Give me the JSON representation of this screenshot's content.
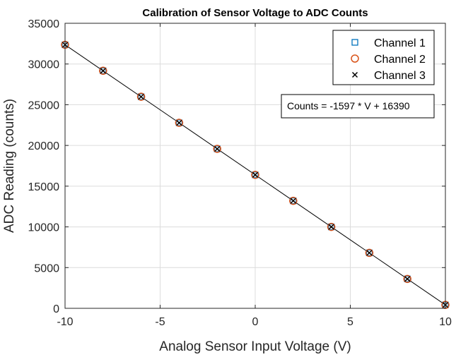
{
  "chart_data": {
    "type": "scatter",
    "title": "Calibration of Sensor Voltage to ADC Counts",
    "xlabel": "Analog Sensor Input Voltage (V)",
    "ylabel": "ADC Reading (counts)",
    "xlim": [
      -10,
      10
    ],
    "ylim": [
      0,
      35000
    ],
    "xticks": [
      -10,
      -5,
      0,
      5,
      10
    ],
    "yticks": [
      0,
      5000,
      10000,
      15000,
      20000,
      25000,
      30000,
      35000
    ],
    "x_tick_labels": [
      "-10",
      "-5",
      "0",
      "5",
      "10"
    ],
    "y_tick_labels": [
      "0",
      "5000",
      "10000",
      "15000",
      "20000",
      "25000",
      "30000",
      "35000"
    ],
    "grid": true,
    "legend_position": "top-right",
    "x": [
      -10,
      -8,
      -6,
      -4,
      -2,
      0,
      2,
      4,
      6,
      8,
      10
    ],
    "series": [
      {
        "name": "Channel 1",
        "marker": "square",
        "color": "#0072BD",
        "values": [
          32360,
          29170,
          25980,
          22780,
          19580,
          16390,
          13200,
          10000,
          6810,
          3610,
          420
        ]
      },
      {
        "name": "Channel 2",
        "marker": "circle",
        "color": "#D95319",
        "values": [
          32360,
          29170,
          25980,
          22780,
          19580,
          16390,
          13200,
          10000,
          6810,
          3610,
          420
        ]
      },
      {
        "name": "Channel 3",
        "marker": "x",
        "color": "#000000",
        "values": [
          32360,
          29170,
          25980,
          22780,
          19580,
          16390,
          13200,
          10000,
          6810,
          3610,
          420
        ]
      }
    ],
    "fit_line": {
      "slope": -1597,
      "intercept": 16390,
      "color": "#000000"
    },
    "annotation": "Counts = -1597 * V + 16390"
  }
}
